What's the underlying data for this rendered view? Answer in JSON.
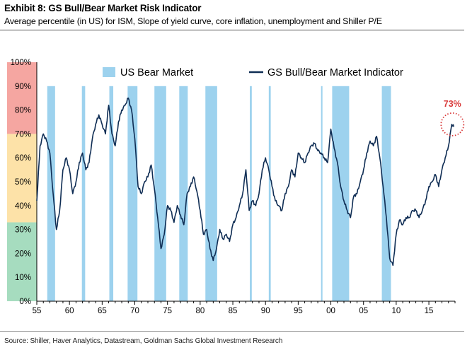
{
  "header": {
    "title": "Exhibit 8: GS Bull/Bear Market Risk Indicator",
    "subtitle": "Average percentile (in US) for ISM, Slope of yield curve, core inflation, unemployment and Shiller P/E"
  },
  "footer": {
    "source": "Source: Shiller, Haver Analytics, Datastream, Goldman Sachs Global Investment Research"
  },
  "colors": {
    "line": "#0f2d54",
    "bear_band": "#9dd2ee",
    "zone_high": "#f5a6a1",
    "zone_mid": "#fde2a8",
    "zone_low": "#a6dcbf",
    "annotation": "#d93a3a"
  },
  "chart_data": {
    "type": "line",
    "title": "",
    "xlabel": "",
    "ylabel": "",
    "xlim": [
      1955,
      2019
    ],
    "ylim": [
      0,
      100
    ],
    "y_ticks": [
      "0%",
      "10%",
      "20%",
      "30%",
      "40%",
      "50%",
      "60%",
      "70%",
      "80%",
      "90%",
      "100%"
    ],
    "x_ticks": [
      {
        "year": 1955,
        "label": "55"
      },
      {
        "year": 1960,
        "label": "60"
      },
      {
        "year": 1965,
        "label": "65"
      },
      {
        "year": 1970,
        "label": "70"
      },
      {
        "year": 1975,
        "label": "75"
      },
      {
        "year": 1980,
        "label": "80"
      },
      {
        "year": 1985,
        "label": "85"
      },
      {
        "year": 1990,
        "label": "90"
      },
      {
        "year": 1995,
        "label": "95"
      },
      {
        "year": 2000,
        "label": "00"
      },
      {
        "year": 2005,
        "label": "05"
      },
      {
        "year": 2010,
        "label": "10"
      },
      {
        "year": 2015,
        "label": "15"
      }
    ],
    "background_zones": [
      {
        "from": 70,
        "to": 100,
        "color": "#f5a6a1"
      },
      {
        "from": 33,
        "to": 70,
        "color": "#fde2a8"
      },
      {
        "from": 0,
        "to": 33,
        "color": "#a6dcbf"
      }
    ],
    "legend": {
      "placement": "top",
      "entries": [
        "US Bear Market",
        "GS Bull/Bear Market Indicator"
      ]
    },
    "bear_markets": {
      "name": "US Bear Market",
      "periods": [
        [
          1956.6,
          1957.8
        ],
        [
          1961.9,
          1962.4
        ],
        [
          1966.1,
          1966.7
        ],
        [
          1968.9,
          1970.4
        ],
        [
          1973.0,
          1974.8
        ],
        [
          1976.8,
          1978.1
        ],
        [
          1980.8,
          1982.6
        ],
        [
          1987.6,
          1987.9
        ],
        [
          1990.5,
          1990.8
        ],
        [
          1998.5,
          1998.7
        ],
        [
          2000.2,
          2002.8
        ],
        [
          2007.8,
          2009.2
        ]
      ]
    },
    "series": [
      {
        "name": "GS Bull/Bear Market Indicator",
        "x": [
          1955.0,
          1955.5,
          1956.0,
          1956.5,
          1957.0,
          1957.5,
          1958.0,
          1958.5,
          1959.0,
          1959.5,
          1960.0,
          1960.5,
          1961.0,
          1961.5,
          1962.0,
          1962.5,
          1963.0,
          1963.5,
          1964.0,
          1964.5,
          1965.0,
          1965.5,
          1966.0,
          1966.5,
          1967.0,
          1967.5,
          1968.0,
          1968.5,
          1969.0,
          1969.5,
          1970.0,
          1970.5,
          1971.0,
          1971.5,
          1972.0,
          1972.5,
          1973.0,
          1973.5,
          1974.0,
          1974.5,
          1975.0,
          1975.5,
          1976.0,
          1976.5,
          1977.0,
          1977.5,
          1978.0,
          1978.5,
          1979.0,
          1979.5,
          1980.0,
          1980.5,
          1981.0,
          1981.5,
          1982.0,
          1982.5,
          1983.0,
          1983.5,
          1984.0,
          1984.5,
          1985.0,
          1985.5,
          1986.0,
          1986.5,
          1987.0,
          1987.5,
          1988.0,
          1988.5,
          1989.0,
          1989.5,
          1990.0,
          1990.5,
          1991.0,
          1991.5,
          1992.0,
          1992.5,
          1993.0,
          1993.5,
          1994.0,
          1994.5,
          1995.0,
          1995.5,
          1996.0,
          1996.5,
          1997.0,
          1997.5,
          1998.0,
          1998.5,
          1999.0,
          1999.5,
          2000.0,
          2000.5,
          2001.0,
          2001.5,
          2002.0,
          2002.5,
          2003.0,
          2003.5,
          2004.0,
          2004.5,
          2005.0,
          2005.5,
          2006.0,
          2006.5,
          2007.0,
          2007.5,
          2008.0,
          2008.5,
          2009.0,
          2009.5,
          2010.0,
          2010.5,
          2011.0,
          2011.5,
          2012.0,
          2012.5,
          2013.0,
          2013.5,
          2014.0,
          2014.5,
          2015.0,
          2015.5,
          2016.0,
          2016.5,
          2017.0,
          2017.5,
          2018.0,
          2018.5,
          2018.8
        ],
        "values": [
          42,
          65,
          70,
          67,
          62,
          45,
          30,
          38,
          55,
          60,
          55,
          45,
          50,
          58,
          62,
          55,
          58,
          68,
          74,
          78,
          74,
          70,
          82,
          70,
          65,
          75,
          80,
          82,
          85,
          80,
          68,
          48,
          45,
          50,
          52,
          57,
          47,
          35,
          22,
          28,
          40,
          38,
          33,
          40,
          36,
          32,
          45,
          48,
          52,
          46,
          38,
          28,
          30,
          22,
          17,
          22,
          30,
          26,
          28,
          25,
          32,
          35,
          40,
          45,
          55,
          38,
          42,
          40,
          45,
          55,
          60,
          55,
          48,
          42,
          40,
          38,
          45,
          48,
          55,
          52,
          62,
          60,
          58,
          62,
          65,
          66,
          63,
          62,
          60,
          58,
          72,
          64,
          58,
          48,
          42,
          38,
          35,
          44,
          45,
          50,
          55,
          62,
          67,
          65,
          69,
          60,
          48,
          35,
          18,
          15,
          28,
          34,
          32,
          35,
          35,
          38,
          38,
          35,
          38,
          42,
          48,
          50,
          53,
          48,
          55,
          60,
          65,
          74,
          73
        ]
      }
    ],
    "annotations": [
      {
        "text": "73%",
        "x": 2018.6,
        "y": 74
      }
    ]
  }
}
